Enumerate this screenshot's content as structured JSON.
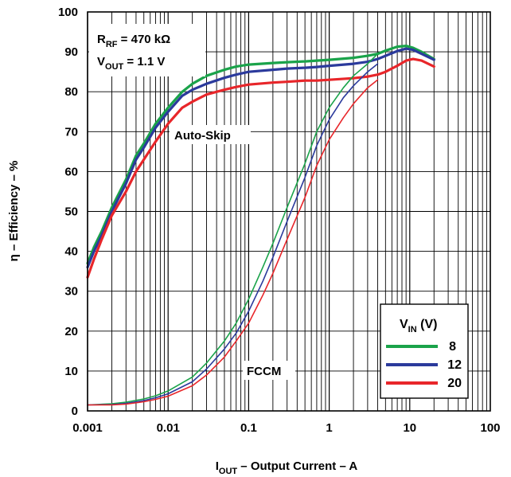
{
  "chart_data": {
    "type": "line",
    "x_scale": "log",
    "xlim": [
      0.001,
      100
    ],
    "ylim": [
      0,
      100
    ],
    "grid": true,
    "xlabel": {
      "main": "I",
      "sub": "OUT",
      "rest": " – Output Current – A"
    },
    "ylabel": "η  – Efficiency – %",
    "x_ticks": [
      {
        "value": 0.001,
        "label": "0.001"
      },
      {
        "value": 0.01,
        "label": "0.01"
      },
      {
        "value": 0.1,
        "label": "0.1"
      },
      {
        "value": 1,
        "label": "1"
      },
      {
        "value": 10,
        "label": "10"
      },
      {
        "value": 100,
        "label": "100"
      }
    ],
    "y_ticks": [
      0,
      10,
      20,
      30,
      40,
      50,
      60,
      70,
      80,
      90,
      100
    ],
    "annotations": {
      "rrf": {
        "main": "R",
        "sub": "RF",
        "rest": " = 470 kΩ"
      },
      "vout": {
        "main": "V",
        "sub": "OUT",
        "rest": " = 1.1 V"
      },
      "auto_skip": "Auto-Skip",
      "fccm": "FCCM"
    },
    "legend": {
      "title_main": "V",
      "title_sub": "IN",
      "title_rest": " (V)",
      "placement": "bottom-right"
    },
    "series": [
      {
        "name": "8",
        "color": "#1aa34a",
        "mode": "Auto-Skip",
        "x": [
          0.001,
          0.0012,
          0.0015,
          0.002,
          0.003,
          0.004,
          0.005,
          0.007,
          0.01,
          0.015,
          0.02,
          0.03,
          0.05,
          0.07,
          0.1,
          0.2,
          0.3,
          0.5,
          0.7,
          1,
          2,
          3,
          4,
          5,
          7,
          9,
          11,
          14,
          20
        ],
        "y": [
          37,
          41,
          45,
          51,
          58,
          64,
          67,
          72,
          76,
          80,
          82,
          84,
          85.5,
          86.3,
          86.8,
          87.2,
          87.4,
          87.6,
          87.8,
          88,
          88.5,
          89,
          89.5,
          90.3,
          91.3,
          91.5,
          91,
          90,
          88.2
        ]
      },
      {
        "name": "12",
        "color": "#2b3a9c",
        "mode": "Auto-Skip",
        "x": [
          0.001,
          0.0012,
          0.0015,
          0.002,
          0.003,
          0.004,
          0.005,
          0.007,
          0.01,
          0.015,
          0.02,
          0.03,
          0.05,
          0.07,
          0.1,
          0.2,
          0.3,
          0.5,
          0.7,
          1,
          2,
          3,
          4,
          5,
          7,
          9,
          11,
          14,
          20
        ],
        "y": [
          36,
          40,
          44,
          50,
          57,
          63,
          66,
          71,
          75,
          79,
          80.5,
          82,
          83.5,
          84.3,
          85,
          85.5,
          85.8,
          86,
          86.2,
          86.5,
          87,
          87.5,
          88.2,
          89,
          90.2,
          90.8,
          90.5,
          89.5,
          88
        ]
      },
      {
        "name": "20",
        "color": "#e8262a",
        "mode": "Auto-Skip",
        "x": [
          0.001,
          0.0012,
          0.0015,
          0.002,
          0.003,
          0.004,
          0.005,
          0.007,
          0.01,
          0.015,
          0.02,
          0.03,
          0.05,
          0.07,
          0.1,
          0.2,
          0.3,
          0.5,
          0.7,
          1,
          2,
          3,
          4,
          5,
          7,
          9,
          11,
          14,
          20
        ],
        "y": [
          33.5,
          38,
          43,
          49,
          55,
          60,
          63,
          67.5,
          72,
          76,
          77.5,
          79.3,
          80.5,
          81.2,
          81.8,
          82.3,
          82.5,
          82.8,
          82.8,
          83,
          83.4,
          83.8,
          84.3,
          85,
          86.5,
          87.8,
          88.2,
          87.8,
          86.3
        ]
      },
      {
        "name": "8",
        "color": "#1aa34a",
        "mode": "FCCM",
        "x": [
          0.001,
          0.002,
          0.003,
          0.005,
          0.007,
          0.01,
          0.02,
          0.03,
          0.05,
          0.07,
          0.1,
          0.15,
          0.2,
          0.3,
          0.5,
          0.7,
          1,
          1.5,
          2,
          3,
          4
        ],
        "y": [
          1.5,
          1.8,
          2.2,
          3.0,
          3.8,
          5.0,
          8.5,
          12,
          17.5,
          22,
          28,
          36,
          42,
          51,
          62,
          70,
          76,
          81,
          84,
          87,
          89.5
        ]
      },
      {
        "name": "12",
        "color": "#2b3a9c",
        "mode": "FCCM",
        "x": [
          0.001,
          0.002,
          0.003,
          0.005,
          0.007,
          0.01,
          0.02,
          0.03,
          0.05,
          0.07,
          0.1,
          0.15,
          0.2,
          0.3,
          0.5,
          0.7,
          1,
          1.5,
          2,
          3,
          4
        ],
        "y": [
          1.5,
          1.6,
          1.9,
          2.6,
          3.3,
          4.3,
          7.3,
          10.5,
          15.5,
          19.5,
          25,
          32.5,
          38.5,
          47.5,
          58.5,
          66.5,
          73,
          78.5,
          81.5,
          85,
          87
        ]
      },
      {
        "name": "20",
        "color": "#e8262a",
        "mode": "FCCM",
        "x": [
          0.001,
          0.002,
          0.003,
          0.005,
          0.007,
          0.01,
          0.02,
          0.03,
          0.05,
          0.07,
          0.1,
          0.15,
          0.2,
          0.3,
          0.5,
          0.7,
          1,
          1.5,
          2,
          3,
          4
        ],
        "y": [
          1.5,
          1.5,
          1.7,
          2.3,
          2.9,
          3.7,
          6.3,
          9.0,
          13.5,
          17.5,
          22,
          29,
          34.5,
          43,
          53.5,
          61.5,
          68,
          73.5,
          77,
          81,
          83
        ]
      }
    ]
  }
}
